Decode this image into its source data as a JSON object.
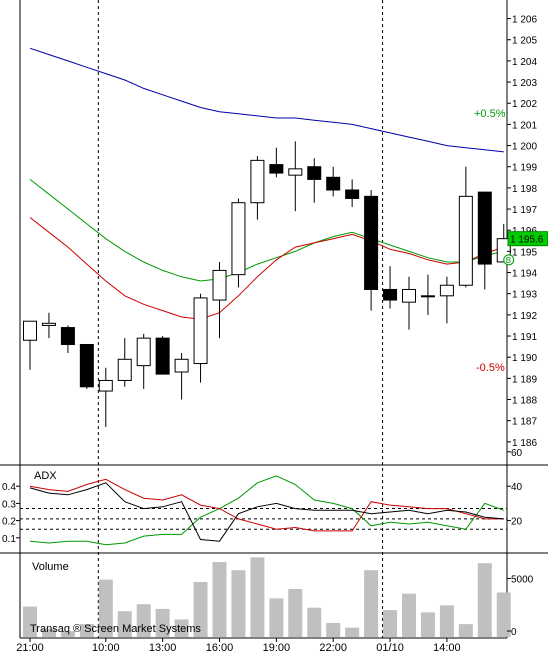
{
  "chart_data": [
    {
      "type": "candlestick",
      "panel": "price",
      "ylim": [
        1185,
        1206.5
      ],
      "y_ticks": [
        1186,
        1187,
        1188,
        1189,
        1190,
        1191,
        1192,
        1193,
        1194,
        1195,
        1196,
        1197,
        1198,
        1199,
        1200,
        1201,
        1202,
        1203,
        1204,
        1205,
        1206
      ],
      "y_tick_labels": [
        "1 186",
        "1 187",
        "1 188",
        "1 189",
        "1 190",
        "1 191",
        "1 192",
        "1 193",
        "1 194",
        "1 195",
        "1 196",
        "1 197",
        "1 198",
        "1 199",
        "1 200",
        "1 201",
        "1 202",
        "1 203",
        "1 204",
        "1 205",
        "1 206"
      ],
      "last_price_label": "1 195.6",
      "annotations": {
        "plus": "+0.5%",
        "minus": "-0.5%",
        "marker": "B"
      },
      "colors": {
        "up_fill": "#ffffff",
        "down_fill": "#000000",
        "ma_slow": "#0000aa",
        "ma_mid": "#009900",
        "ma_fast": "#cc0000",
        "plus_text": "#009900",
        "minus_text": "#cc0000"
      },
      "candles": [
        {
          "t": 0,
          "o": 1190.8,
          "h": 1191.6,
          "l": 1189.4,
          "c": 1191.7
        },
        {
          "t": 1,
          "o": 1191.5,
          "h": 1192.1,
          "l": 1190.9,
          "c": 1191.6
        },
        {
          "t": 2,
          "o": 1191.4,
          "h": 1191.5,
          "l": 1190.2,
          "c": 1190.6
        },
        {
          "t": 3,
          "o": 1190.6,
          "h": 1190.6,
          "l": 1188.5,
          "c": 1188.6
        },
        {
          "t": 4,
          "o": 1188.4,
          "h": 1189.5,
          "l": 1186.7,
          "c": 1188.9
        },
        {
          "t": 5,
          "o": 1188.9,
          "h": 1190.9,
          "l": 1188.6,
          "c": 1189.9
        },
        {
          "t": 6,
          "o": 1189.6,
          "h": 1191.1,
          "l": 1188.5,
          "c": 1190.9
        },
        {
          "t": 7,
          "o": 1190.9,
          "h": 1191.0,
          "l": 1189.2,
          "c": 1189.2
        },
        {
          "t": 8,
          "o": 1189.3,
          "h": 1190.2,
          "l": 1188.0,
          "c": 1189.9
        },
        {
          "t": 9,
          "o": 1189.7,
          "h": 1193.0,
          "l": 1188.8,
          "c": 1192.8
        },
        {
          "t": 10,
          "o": 1192.7,
          "h": 1194.5,
          "l": 1190.9,
          "c": 1194.1
        },
        {
          "t": 11,
          "o": 1193.9,
          "h": 1197.5,
          "l": 1193.3,
          "c": 1197.3
        },
        {
          "t": 12,
          "o": 1197.3,
          "h": 1199.5,
          "l": 1196.5,
          "c": 1199.3
        },
        {
          "t": 13,
          "o": 1199.1,
          "h": 1199.9,
          "l": 1198.5,
          "c": 1198.7
        },
        {
          "t": 14,
          "o": 1198.6,
          "h": 1200.2,
          "l": 1196.9,
          "c": 1198.9
        },
        {
          "t": 15,
          "o": 1199.0,
          "h": 1199.4,
          "l": 1197.3,
          "c": 1198.4
        },
        {
          "t": 16,
          "o": 1198.5,
          "h": 1199.0,
          "l": 1197.6,
          "c": 1197.9
        },
        {
          "t": 17,
          "o": 1197.9,
          "h": 1198.4,
          "l": 1197.1,
          "c": 1197.5
        },
        {
          "t": 18,
          "o": 1197.6,
          "h": 1197.9,
          "l": 1192.2,
          "c": 1193.2
        },
        {
          "t": 19,
          "o": 1193.2,
          "h": 1194.3,
          "l": 1192.3,
          "c": 1192.7
        },
        {
          "t": 20,
          "o": 1192.6,
          "h": 1193.8,
          "l": 1191.3,
          "c": 1193.2
        },
        {
          "t": 21,
          "o": 1192.9,
          "h": 1193.9,
          "l": 1192.0,
          "c": 1192.9
        },
        {
          "t": 22,
          "o": 1192.9,
          "h": 1193.8,
          "l": 1191.6,
          "c": 1193.4
        },
        {
          "t": 23,
          "o": 1193.4,
          "h": 1199.0,
          "l": 1193.3,
          "c": 1197.6
        },
        {
          "t": 24,
          "o": 1197.8,
          "h": 1197.8,
          "l": 1193.2,
          "c": 1194.4
        },
        {
          "t": 25,
          "o": 1194.5,
          "h": 1196.3,
          "l": 1194.5,
          "c": 1195.6
        }
      ],
      "ma_slow": [
        1204.6,
        1204.3,
        1204.0,
        1203.7,
        1203.4,
        1203.1,
        1202.7,
        1202.4,
        1202.1,
        1201.8,
        1201.6,
        1201.5,
        1201.4,
        1201.3,
        1201.3,
        1201.2,
        1201.1,
        1201.0,
        1200.8,
        1200.6,
        1200.4,
        1200.2,
        1200.0,
        1199.9,
        1199.8,
        1199.7
      ],
      "ma_mid": [
        1198.4,
        1197.7,
        1197.0,
        1196.3,
        1195.6,
        1195.0,
        1194.5,
        1194.1,
        1193.8,
        1193.6,
        1193.7,
        1194.0,
        1194.4,
        1194.7,
        1195.0,
        1195.4,
        1195.7,
        1195.9,
        1195.6,
        1195.3,
        1195.0,
        1194.7,
        1194.5,
        1194.5,
        1194.8,
        1195.0
      ],
      "ma_fast": [
        1196.6,
        1195.9,
        1195.2,
        1194.4,
        1193.6,
        1192.9,
        1192.5,
        1192.2,
        1191.9,
        1191.8,
        1192.1,
        1192.9,
        1193.8,
        1194.6,
        1195.2,
        1195.4,
        1195.6,
        1195.8,
        1195.5,
        1195.1,
        1194.9,
        1194.6,
        1194.4,
        1194.5,
        1194.9,
        1195.2
      ]
    },
    {
      "type": "line",
      "panel": "adx",
      "title": "ADX",
      "ylim_left": [
        0,
        0.5
      ],
      "left_ticks": [
        0.1,
        0.2,
        0.3,
        0.4
      ],
      "left_tick_labels": [
        "0.1",
        "0.2",
        "0.3",
        "0.4"
      ],
      "right_ticks": [
        20,
        40,
        60
      ],
      "right_tick_labels": [
        "20",
        "40",
        "60"
      ],
      "colors": {
        "adx": "#000000",
        "plus_di": "#009900",
        "minus_di": "#cc0000"
      },
      "adx": [
        0.39,
        0.36,
        0.35,
        0.38,
        0.42,
        0.31,
        0.27,
        0.28,
        0.31,
        0.09,
        0.08,
        0.24,
        0.28,
        0.3,
        0.27,
        0.26,
        0.26,
        0.26,
        0.24,
        0.25,
        0.26,
        0.24,
        0.26,
        0.25,
        0.22,
        0.21
      ],
      "plus_di": [
        0.08,
        0.07,
        0.08,
        0.08,
        0.06,
        0.07,
        0.11,
        0.12,
        0.12,
        0.22,
        0.27,
        0.33,
        0.42,
        0.46,
        0.41,
        0.32,
        0.3,
        0.27,
        0.17,
        0.19,
        0.18,
        0.19,
        0.17,
        0.15,
        0.3,
        0.26
      ],
      "minus_di": [
        0.4,
        0.38,
        0.37,
        0.41,
        0.44,
        0.38,
        0.33,
        0.32,
        0.35,
        0.29,
        0.27,
        0.21,
        0.18,
        0.15,
        0.16,
        0.14,
        0.14,
        0.14,
        0.31,
        0.29,
        0.28,
        0.27,
        0.27,
        0.24,
        0.21,
        0.21
      ]
    },
    {
      "type": "bar",
      "panel": "volume",
      "title": "Volume",
      "ylim": [
        0,
        7000
      ],
      "right_ticks": [
        0,
        5000
      ],
      "right_tick_labels": [
        "0",
        "5000"
      ],
      "values": [
        2600,
        700,
        500,
        1100,
        4900,
        2200,
        2800,
        2400,
        1500,
        4700,
        6400,
        5700,
        6800,
        3300,
        4100,
        2500,
        1200,
        800,
        5700,
        2300,
        3700,
        2100,
        2700,
        1100,
        6300,
        3800
      ]
    }
  ],
  "x_axis": {
    "labels": [
      "21:00",
      "10:00",
      "13:00",
      "16:00",
      "19:00",
      "22:00",
      "01/10",
      "14:00"
    ],
    "label_positions": [
      0,
      4,
      7,
      10,
      13,
      16,
      19,
      22
    ],
    "session_breaks": [
      4,
      19
    ]
  },
  "watermark": "Transaq ® Screen Market Systems"
}
